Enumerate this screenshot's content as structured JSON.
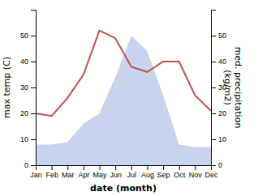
{
  "chart_data": {
    "type": "line",
    "categories": [
      "Jan",
      "Feb",
      "Mar",
      "Apr",
      "May",
      "Jun",
      "Jul",
      "Aug",
      "Sep",
      "Oct",
      "Nov",
      "Dec"
    ],
    "xlabel": "date (month)",
    "ylabel": "max temp (C)",
    "y2label": "med. precipitation\n(kg/m2)",
    "series": [
      {
        "type": "line",
        "color": "#c0504d",
        "values": [
          20,
          19,
          26,
          35,
          52,
          49,
          38,
          36,
          40,
          40,
          27,
          21
        ]
      },
      {
        "type": "area",
        "axis": "y2",
        "color": "#b8c4e8",
        "values": [
          8,
          8,
          9,
          16,
          20,
          34,
          50,
          44,
          27,
          8,
          7,
          7
        ]
      }
    ],
    "ylim": [
      0,
      60
    ],
    "yticks": [
      0,
      10,
      20,
      30,
      40,
      50
    ],
    "y2lim": [
      0,
      60
    ],
    "y2ticks": [
      0,
      10,
      20,
      30,
      40,
      50
    ]
  }
}
